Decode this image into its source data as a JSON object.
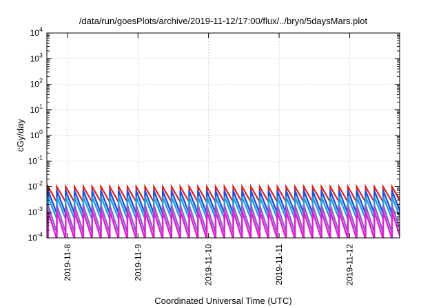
{
  "chart_data": {
    "type": "line",
    "title": "/data/run/goesPlots/archive/2019-11-12/17:00/flux/../bryn/5daysMars.plot",
    "xlabel": "Coordinated Universal Time (UTC)",
    "ylabel": "cGy/day",
    "y_scale": "log",
    "y_tick_exponents": [
      -4,
      -3,
      -2,
      -1,
      0,
      1,
      2,
      3,
      4
    ],
    "y_tick_base": "10",
    "x_range": [
      "2019-11-07 17:00",
      "2019-11-12 17:00"
    ],
    "x_ticks": [
      {
        "label": "2019-11-8",
        "time": "2019-11-08 00:00"
      },
      {
        "label": "2019-11-9",
        "time": "2019-11-09 00:00"
      },
      {
        "label": "2019-11-10",
        "time": "2019-11-10 00:00"
      },
      {
        "label": "2019-11-11",
        "time": "2019-11-11 00:00"
      },
      {
        "label": "2019-11-12",
        "time": "2019-11-12 00:00"
      }
    ],
    "grid": true,
    "legend": "none",
    "series_pattern": "sawtooth, one cycle per 3 hours, instant rise then exponential decay",
    "series": [
      {
        "color": "#d62020",
        "peak": 0.01,
        "trough": 0.0025
      },
      {
        "color": "#2050d8",
        "peak": 0.007,
        "trough": 0.0009
      },
      {
        "color": "#20a0e0",
        "peak": 0.004,
        "trough": 0.00055
      },
      {
        "color": "#8c60c8",
        "peak": 0.0019,
        "trough": 0.00016
      },
      {
        "color": "#e020d0",
        "peak": 0.0011,
        "trough": 9e-05
      }
    ]
  }
}
